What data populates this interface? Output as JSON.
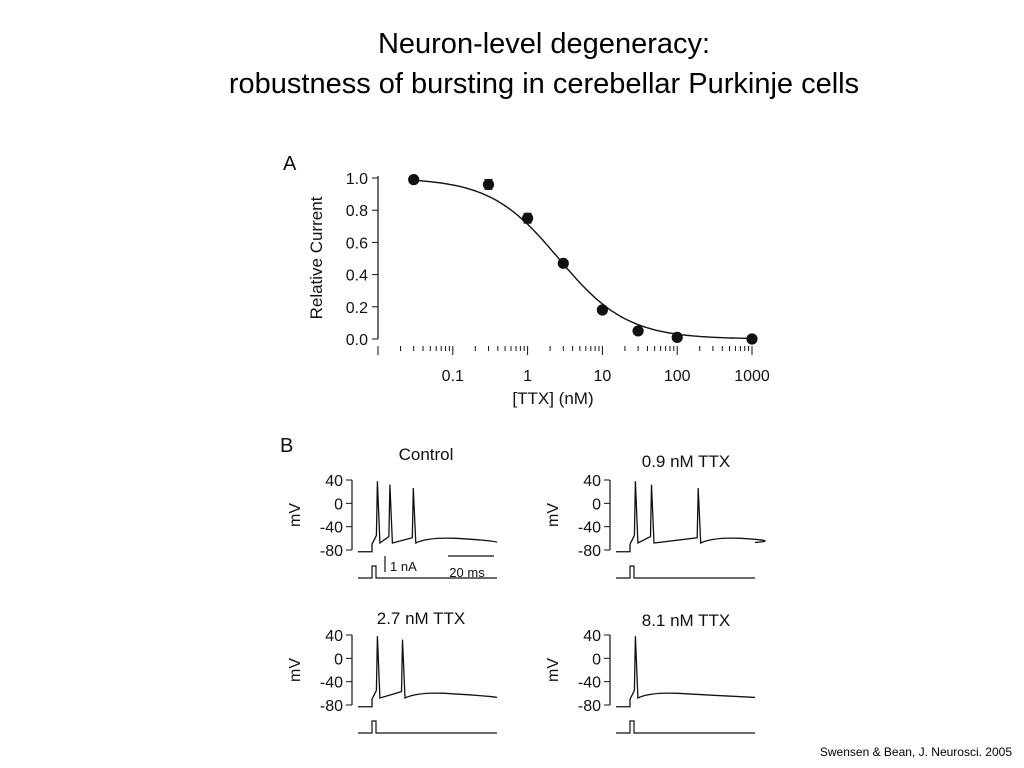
{
  "slide": {
    "title_line1": "Neuron-level degeneracy:",
    "title_line2": "robustness of bursting in cerebellar Purkinje cells",
    "citation": "Swensen & Bean, J. Neurosci. 2005"
  },
  "colors": {
    "ink": "#111111",
    "background": "#ffffff"
  },
  "chart_data": [
    {
      "panel": "A",
      "type": "scatter",
      "xlabel": "[TTX] (nM)",
      "ylabel": "Relative Current",
      "xscale": "log",
      "xlim": [
        0.01,
        1000
      ],
      "ylim": [
        0,
        1.0
      ],
      "x_ticks": [
        0.1,
        1,
        10,
        100,
        1000
      ],
      "x_tick_labels": [
        "0.1",
        "1",
        "10",
        "100",
        "1000"
      ],
      "y_ticks": [
        0.0,
        0.2,
        0.4,
        0.6,
        0.8,
        1.0
      ],
      "y_tick_labels": [
        "0.0",
        "0.2",
        "0.4",
        "0.6",
        "0.8",
        "1.0"
      ],
      "points": [
        {
          "x": 0.03,
          "y": 0.99,
          "err": 0.0
        },
        {
          "x": 0.3,
          "y": 0.96,
          "err": 0.03
        },
        {
          "x": 1,
          "y": 0.75,
          "err": 0.03
        },
        {
          "x": 3,
          "y": 0.47,
          "err": 0.02
        },
        {
          "x": 10,
          "y": 0.18,
          "err": 0.0
        },
        {
          "x": 30,
          "y": 0.05,
          "err": 0.0
        },
        {
          "x": 100,
          "y": 0.01,
          "err": 0.0
        },
        {
          "x": 1000,
          "y": 0.0,
          "err": 0.0
        }
      ],
      "fit": {
        "type": "hill",
        "ic50": 2.6,
        "hill": 0.95
      }
    },
    {
      "panel": "B",
      "type": "line",
      "ylabel": "mV",
      "ylim": [
        -90,
        45
      ],
      "y_ticks": [
        40,
        0,
        -40,
        -80
      ],
      "y_tick_labels": [
        "40",
        "0",
        "-40",
        "-80"
      ],
      "scale_bars": {
        "current": "1 nA",
        "time": "20 ms"
      },
      "traces": [
        {
          "condition": "Control",
          "spikes_ms": [
            3,
            10,
            23
          ]
        },
        {
          "condition": "0.9 nM TTX",
          "spikes_ms": [
            3,
            12,
            38
          ]
        },
        {
          "condition": "2.7 nM TTX",
          "spikes_ms": [
            3,
            17
          ]
        },
        {
          "condition": "8.1 nM TTX",
          "spikes_ms": [
            3
          ]
        }
      ]
    }
  ]
}
